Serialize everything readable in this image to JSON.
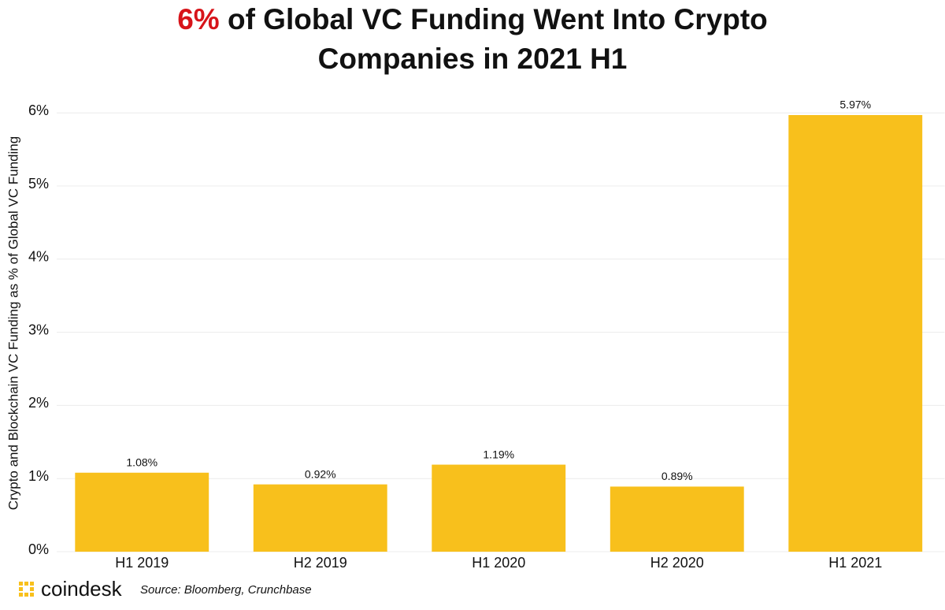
{
  "chart_data": {
    "type": "bar",
    "title_highlight": "6%",
    "title": "of Global VC Funding Went Into Crypto Companies in 2021 H1",
    "y_label": "Crypto and Blockchain VC Funding as % of Global VC Funding",
    "categories": [
      "H1 2019",
      "H2 2019",
      "H1 2020",
      "H2 2020",
      "H1 2021"
    ],
    "values": [
      1.08,
      0.92,
      1.19,
      0.89,
      5.97
    ],
    "value_labels": [
      "1.08%",
      "0.92%",
      "1.19%",
      "0.89%",
      "5.97%"
    ],
    "color": "#f8c01c",
    "highlight_color": "#d7141a",
    "ylim": [
      0,
      6.2
    ],
    "yticks": [
      {
        "value": 0,
        "label": "0%"
      },
      {
        "value": 1,
        "label": "1%"
      },
      {
        "value": 2,
        "label": "2%"
      },
      {
        "value": 3,
        "label": "3%"
      },
      {
        "value": 4,
        "label": "4%"
      },
      {
        "value": 5,
        "label": "5%"
      },
      {
        "value": 6,
        "label": "6%"
      }
    ],
    "grid": true,
    "brand": "coindesk",
    "source": "Source: Bloomberg, Crunchbase"
  }
}
